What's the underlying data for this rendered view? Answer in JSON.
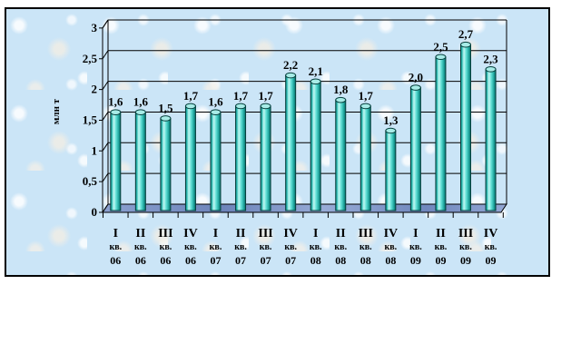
{
  "page": {
    "background": "#ffffff"
  },
  "chart": {
    "border_color": "#000000",
    "plot_bg_color": "#cbe5f7",
    "grid_color": "#000000",
    "floor_color_light": "#93a7d4",
    "floor_color_dark": "#6d84ba",
    "bar_edge_color": "#0a7d78",
    "bar_highlight_color": "#c2f8f3",
    "bar_mid_color": "#63e0d7",
    "bar_outline_color": "#053f3c",
    "bar_top_color": "#a7ece7",
    "label_color": "#000000"
  },
  "chart_data": {
    "type": "bar",
    "style": "3d-cylinder",
    "title": "",
    "ylabel": "млн т",
    "xlabel": "",
    "ylim": [
      0,
      3
    ],
    "ytick_step": 0.5,
    "ytick_labels": [
      "0",
      "0,5",
      "1",
      "1,5",
      "2",
      "2,5",
      "3"
    ],
    "grid": true,
    "legend": false,
    "categories": [
      {
        "quarter": "I",
        "kv": "кв.",
        "year": "06"
      },
      {
        "quarter": "II",
        "kv": "кв.",
        "year": "06"
      },
      {
        "quarter": "III",
        "kv": "кв.",
        "year": "06"
      },
      {
        "quarter": "IV",
        "kv": "кв.",
        "year": "06"
      },
      {
        "quarter": "I",
        "kv": "кв.",
        "year": "07"
      },
      {
        "quarter": "II",
        "kv": "кв.",
        "year": "07"
      },
      {
        "quarter": "III",
        "kv": "кв.",
        "year": "07"
      },
      {
        "quarter": "IV",
        "kv": "кв.",
        "year": "07"
      },
      {
        "quarter": "I",
        "kv": "кв.",
        "year": "08"
      },
      {
        "quarter": "II",
        "kv": "кв.",
        "year": "08"
      },
      {
        "quarter": "III",
        "kv": "кв.",
        "year": "08"
      },
      {
        "quarter": "IV",
        "kv": "кв.",
        "year": "08"
      },
      {
        "quarter": "I",
        "kv": "кв.",
        "year": "09"
      },
      {
        "quarter": "II",
        "kv": "кв.",
        "year": "09"
      },
      {
        "quarter": "III",
        "kv": "кв.",
        "year": "09"
      },
      {
        "quarter": "IV",
        "kv": "кв.",
        "year": "09"
      }
    ],
    "values": [
      1.6,
      1.6,
      1.5,
      1.7,
      1.6,
      1.7,
      1.7,
      2.2,
      2.1,
      1.8,
      1.7,
      1.3,
      2.0,
      2.5,
      2.7,
      2.3
    ],
    "value_labels": [
      "1,6",
      "1,6",
      "1,5",
      "1,7",
      "1,6",
      "1,7",
      "1,7",
      "2,2",
      "2,1",
      "1,8",
      "1,7",
      "1,3",
      "2,0",
      "2,5",
      "2,7",
      "2,3"
    ]
  }
}
